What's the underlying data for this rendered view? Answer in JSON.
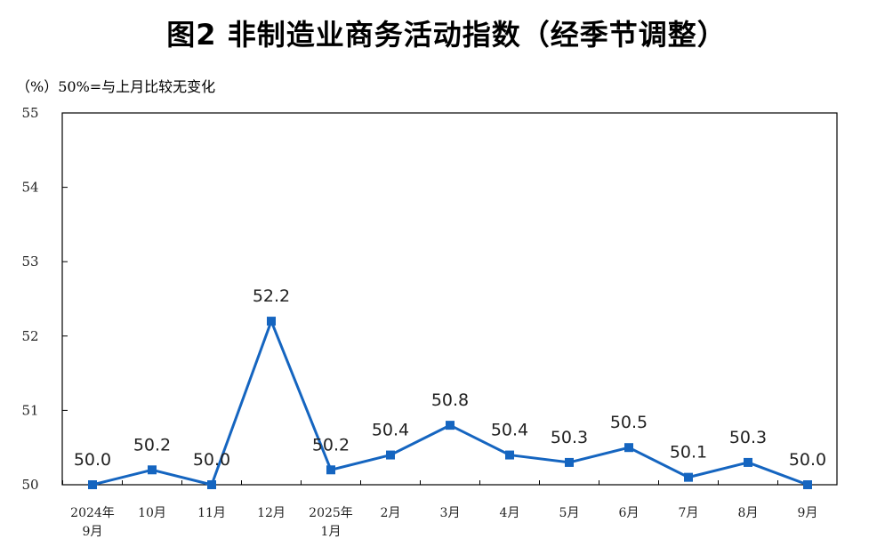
{
  "title": "图2  非制造业商务活动指数（经季节调整）",
  "unit_note": "（%）50%=与上月比较无变化",
  "colors": {
    "line": "#1565c0",
    "axis": "#000000"
  },
  "chart_data": {
    "type": "line",
    "categories": [
      [
        "2024年",
        "9月"
      ],
      [
        "10月"
      ],
      [
        "11月"
      ],
      [
        "12月"
      ],
      [
        "2025年",
        "1月"
      ],
      [
        "2月"
      ],
      [
        "3月"
      ],
      [
        "4月"
      ],
      [
        "5月"
      ],
      [
        "6月"
      ],
      [
        "7月"
      ],
      [
        "8月"
      ],
      [
        "9月"
      ]
    ],
    "values": [
      50.0,
      50.2,
      50.0,
      52.2,
      50.2,
      50.4,
      50.8,
      50.4,
      50.3,
      50.5,
      50.1,
      50.3,
      50.0
    ],
    "data_labels": [
      "50.0",
      "50.2",
      "50.0",
      "52.2",
      "50.2",
      "50.4",
      "50.8",
      "50.4",
      "50.3",
      "50.5",
      "50.1",
      "50.3",
      "50.0"
    ],
    "ylim": [
      50,
      55
    ],
    "yticks": [
      50,
      51,
      52,
      53,
      54,
      55
    ],
    "grid": false,
    "legend": "none",
    "xlabel": "",
    "ylabel": ""
  }
}
